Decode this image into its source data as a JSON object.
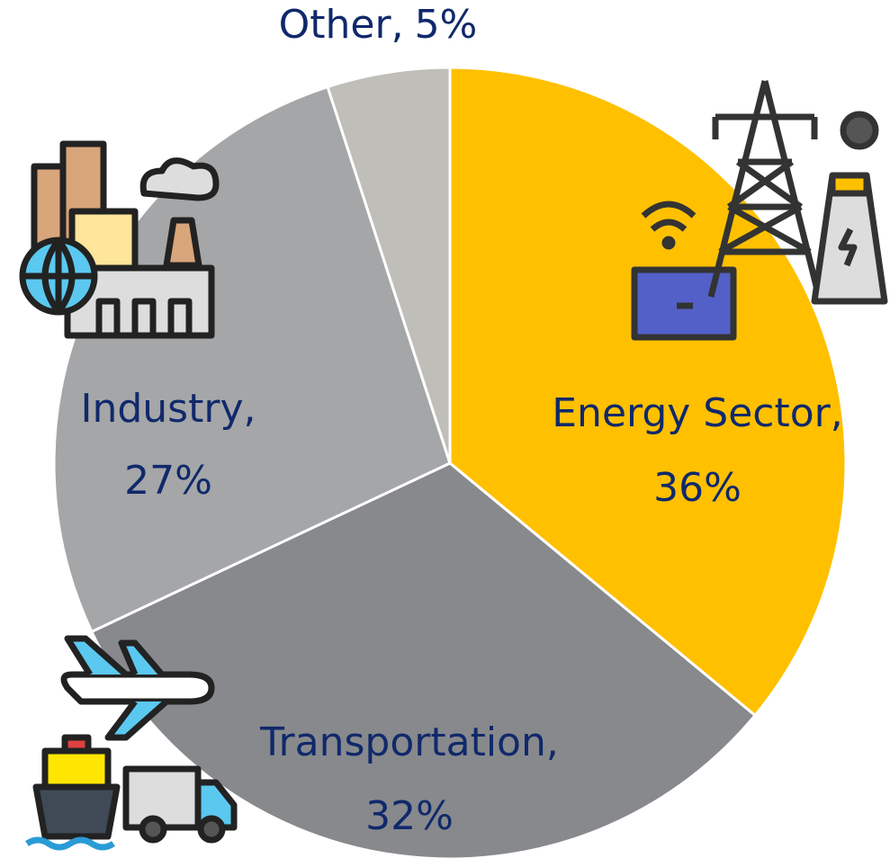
{
  "chart_data": {
    "type": "pie",
    "categories": [
      "Energy Sector",
      "Transportation",
      "Industry",
      "Other"
    ],
    "values": [
      36,
      32,
      27,
      5
    ],
    "value_labels": [
      "36%",
      "32%",
      "27%",
      "5%"
    ],
    "label_separator": ",",
    "colors": [
      "#FFC000",
      "#87898C",
      "#A5A6A8",
      "#C0BEB8"
    ],
    "start_angle": 0,
    "direction": "clockwise"
  }
}
